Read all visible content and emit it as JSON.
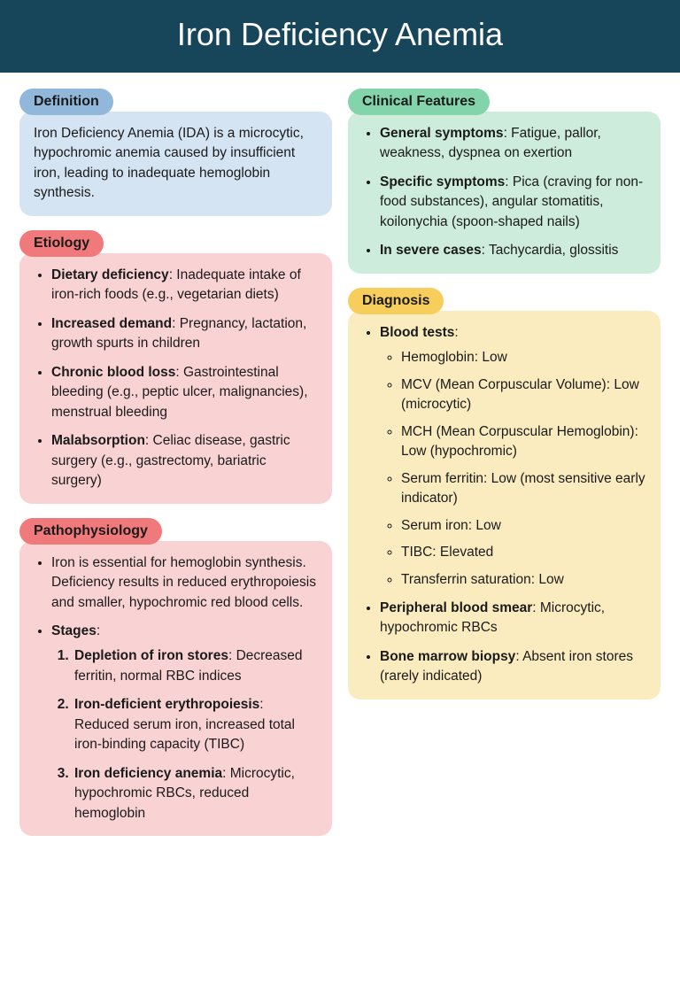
{
  "title": "Iron Deficiency Anemia",
  "colors": {
    "header_bg": "#17455a",
    "header_fg": "#ffffff",
    "blue_pill": "#91b8db",
    "blue_box": "#d4e4f2",
    "red_pill": "#f0797b",
    "red_box": "#f9d2d3",
    "green_pill": "#83d3ab",
    "green_box": "#cdecdb",
    "yellow_pill": "#f7ce5c",
    "yellow_box": "#fbecc0"
  },
  "typography": {
    "title_fontsize": 36,
    "pill_fontsize": 16,
    "body_fontsize": 15.5,
    "body_lineheight": 1.45
  },
  "definition": {
    "heading": "Definition",
    "text": "Iron Deficiency Anemia (IDA) is a microcytic, hypochromic anemia caused by insufficient iron, leading to inadequate hemoglobin synthesis."
  },
  "etiology": {
    "heading": "Etiology",
    "items": [
      {
        "bold": "Dietary deficiency",
        "rest": ": Inadequate intake of iron-rich foods (e.g., vegetarian diets)"
      },
      {
        "bold": "Increased demand",
        "rest": ": Pregnancy, lactation, growth spurts in children"
      },
      {
        "bold": "Chronic blood loss",
        "rest": ": Gastrointestinal bleeding (e.g., peptic ulcer, malignancies), menstrual bleeding"
      },
      {
        "bold": "Malabsorption",
        "rest": ": Celiac disease, gastric surgery (e.g., gastrectomy, bariatric surgery)"
      }
    ]
  },
  "pathophysiology": {
    "heading": "Pathophysiology",
    "intro": "Iron is essential for hemoglobin synthesis. Deficiency results in reduced erythropoiesis and smaller, hypochromic red blood cells.",
    "stages_label": "Stages",
    "stages": [
      {
        "bold": "Depletion of iron stores",
        "rest": ": Decreased ferritin, normal RBC indices"
      },
      {
        "bold": "Iron-deficient erythropoiesis",
        "rest": ": Reduced serum iron, increased total iron-binding capacity (TIBC)"
      },
      {
        "bold": "Iron deficiency anemia",
        "rest": ": Microcytic, hypochromic RBCs, reduced hemoglobin"
      }
    ]
  },
  "clinical": {
    "heading": "Clinical Features",
    "items": [
      {
        "bold": "General symptoms",
        "rest": ": Fatigue, pallor, weakness, dyspnea on exertion"
      },
      {
        "bold": "Specific symptoms",
        "rest": ": Pica (craving for non-food substances), angular stomatitis, koilonychia (spoon-shaped nails)"
      },
      {
        "bold": "In severe cases",
        "rest": ": Tachycardia, glossitis"
      }
    ]
  },
  "diagnosis": {
    "heading": "Diagnosis",
    "blood_label": "Blood tests",
    "blood_items": [
      "Hemoglobin: Low",
      "MCV (Mean Corpuscular Volume): Low (microcytic)",
      "MCH (Mean Corpuscular Hemoglobin): Low (hypochromic)",
      "Serum ferritin: Low (most sensitive early indicator)",
      "Serum iron: Low",
      "TIBC: Elevated",
      "Transferrin saturation: Low"
    ],
    "smear": {
      "bold": "Peripheral blood smear",
      "rest": ": Microcytic, hypochromic RBCs"
    },
    "biopsy": {
      "bold": "Bone marrow biopsy",
      "rest": ": Absent iron stores (rarely indicated)"
    }
  }
}
